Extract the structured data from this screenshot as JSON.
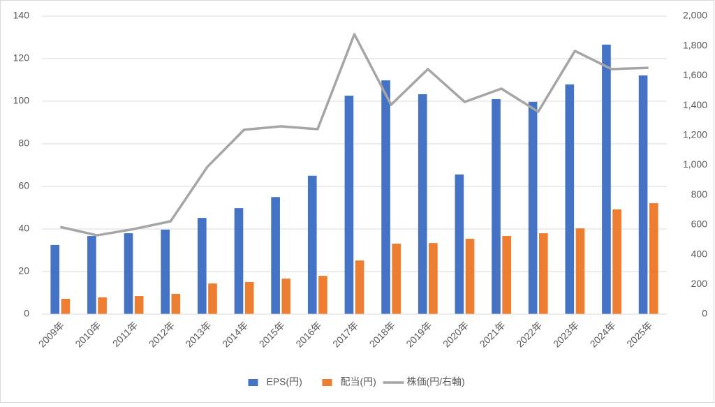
{
  "chart_data": {
    "type": "bar",
    "categories": [
      "2009年",
      "2010年",
      "2011年",
      "2012年",
      "2013年",
      "2014年",
      "2015年",
      "2016年",
      "2017年",
      "2018年",
      "2019年",
      "2020年",
      "2021年",
      "2022年",
      "2023年",
      "2024年",
      "2025年"
    ],
    "series": [
      {
        "name": "EPS(円)",
        "color": "#4472c4",
        "values": [
          32.5,
          36.7,
          38,
          39.7,
          45.2,
          49.8,
          55,
          65,
          102.6,
          109.8,
          103.3,
          65.6,
          101,
          99.7,
          107.9,
          126.6,
          112.1
        ]
      },
      {
        "name": "配当(円)",
        "color": "#ed7d31",
        "values": [
          7.2,
          7.9,
          8.5,
          9.5,
          14.4,
          15.1,
          16.7,
          18,
          25.2,
          33.1,
          33.4,
          35.4,
          36.7,
          38,
          40.3,
          49.2,
          52.1
        ]
      },
      {
        "name": "株価(円/右軸)",
        "color": "#a5a5a5",
        "type": "line",
        "axis": "y2",
        "values": [
          585,
          529,
          571,
          623,
          988,
          1237,
          1260,
          1241,
          1878,
          1405,
          1644,
          1424,
          1513,
          1358,
          1766,
          1644,
          1653
        ]
      }
    ],
    "ylim": [
      0,
      140
    ],
    "yticks": [
      0,
      20,
      40,
      60,
      80,
      100,
      120,
      140
    ],
    "y2lim": [
      0,
      2000
    ],
    "y2ticks": [
      0,
      200,
      400,
      600,
      800,
      {
        "value": 1000,
        "label": "1,000"
      },
      {
        "value": 1200,
        "label": "1,200"
      },
      {
        "value": 1400,
        "label": "1,400"
      },
      {
        "value": 1600,
        "label": "1,600"
      },
      {
        "value": 1800,
        "label": "1,800"
      },
      {
        "value": 2000,
        "label": "2,000"
      }
    ],
    "grid": true,
    "legend": "bottom"
  }
}
